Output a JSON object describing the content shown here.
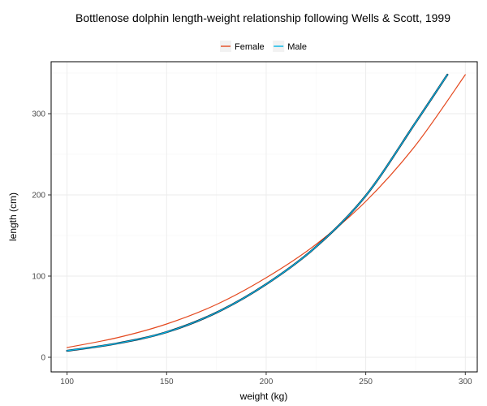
{
  "chart_data": {
    "type": "line",
    "title": "Bottlenose dolphin length-weight relationship following Wells & Scott, 1999",
    "xlabel": "weight (kg)",
    "ylabel": "length (cm)",
    "xlim": [
      92,
      306
    ],
    "ylim": [
      -18,
      364
    ],
    "x_ticks": [
      100,
      150,
      200,
      250,
      300
    ],
    "y_ticks": [
      0,
      100,
      200,
      300
    ],
    "grid": true,
    "legend_position": "top",
    "series": [
      {
        "name": "Female",
        "color": "#e4491f",
        "x": [
          100,
          125,
          150,
          175,
          200,
          225,
          250,
          275,
          300
        ],
        "y": [
          12,
          24,
          41,
          65,
          98,
          139,
          192,
          261,
          348
        ]
      },
      {
        "name": "Male",
        "color": "#00b6e8",
        "x": [
          100,
          125,
          150,
          175,
          200,
          225,
          250,
          275,
          291
        ],
        "y": [
          8,
          17,
          31,
          55,
          90,
          136,
          199,
          289,
          348
        ]
      }
    ]
  }
}
